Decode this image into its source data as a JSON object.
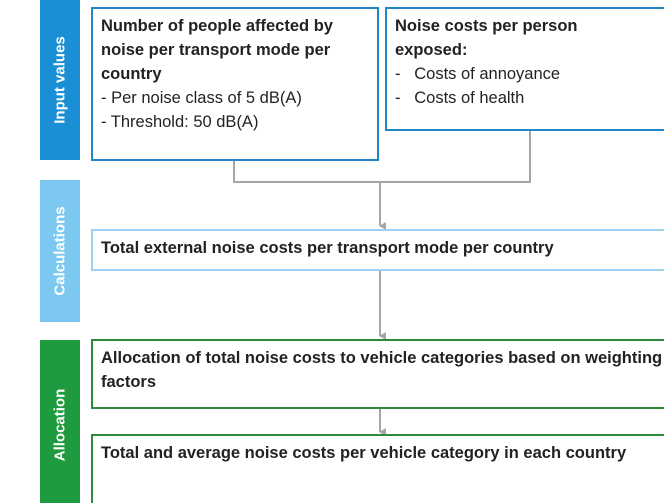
{
  "stages": [
    {
      "label": "Input values"
    },
    {
      "label": "Calculations"
    },
    {
      "label": "Allocation"
    }
  ],
  "boxes": [
    {
      "title": "Number of people affected by noise per transport mode per country",
      "items": [
        "- Per noise class of 5 dB(A)",
        "- Threshold: 50 dB(A)"
      ]
    },
    {
      "title": "Noise costs per person exposed:",
      "items": [
        "-   Costs of annoyance",
        "-   Costs of health"
      ]
    },
    {
      "title": "Total external noise costs per transport mode per country"
    },
    {
      "title": "Allocation of total noise costs to vehicle categories based on weighting factors"
    },
    {
      "title": "Total and average noise costs per vehicle category in each country"
    }
  ]
}
